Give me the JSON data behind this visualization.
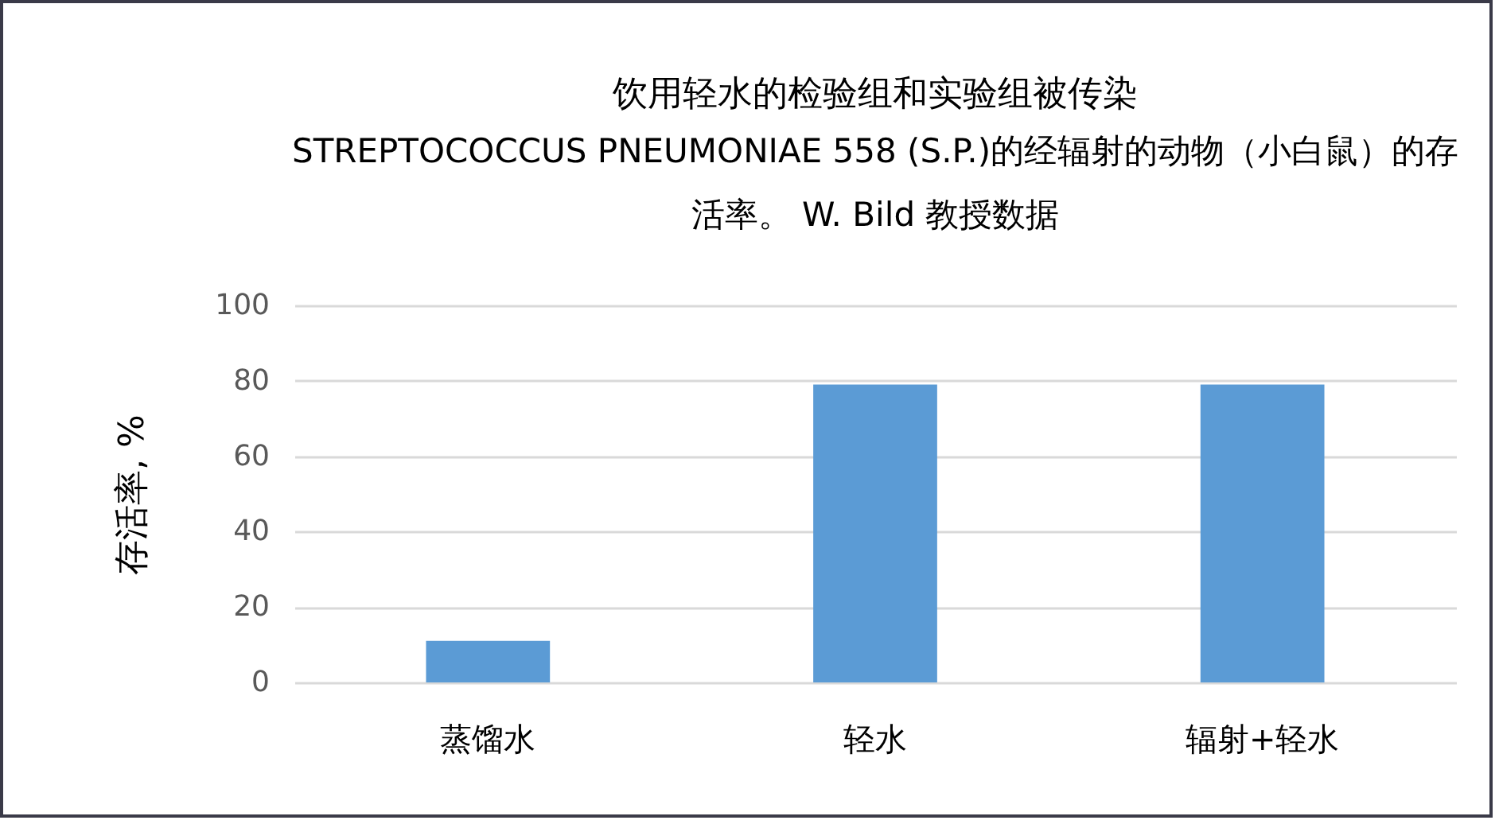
{
  "chart_data": {
    "type": "bar",
    "title": "饮用轻水的检验组和实验组被传染",
    "subtitle": "STREPTOCOCCUS PNEUMONIAE 558 (S.P.)的经辐射的动物（小白鼠）的存活率。 W. Bild 教授数据",
    "ylabel": "存活率, %",
    "categories": [
      "蒸馏水",
      "轻水",
      "辐射+轻水"
    ],
    "values": [
      11,
      79,
      79
    ],
    "color": "#5b9bd5",
    "ylim": [
      0,
      100
    ],
    "yticks": [
      0,
      20,
      40,
      60,
      80,
      100
    ],
    "grid": "y"
  }
}
